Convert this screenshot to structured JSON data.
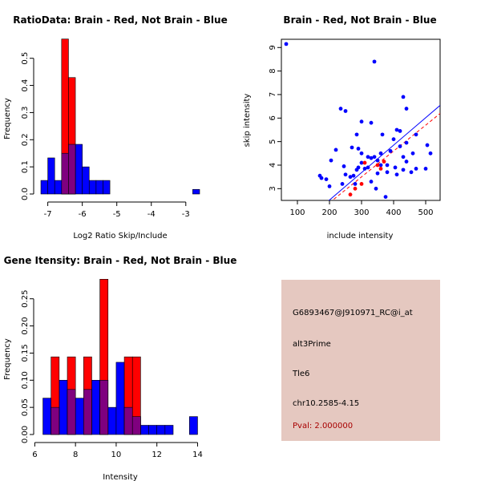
{
  "colors": {
    "brain": "#ff0000",
    "not_brain": "#0000ff",
    "overlap": "#7f007f",
    "panel_bg": "#e5c8c0"
  },
  "chart_data": [
    {
      "type": "histogram",
      "title": "RatioData: Brain - Red, Not Brain - Blue",
      "xlabel": "Log2 Ratio Skip/Include",
      "ylabel": "Frequency",
      "xlim": [
        -7.2,
        -2.6
      ],
      "ylim": [
        0,
        0.57
      ],
      "x_ticks": [
        -7,
        -6,
        -5,
        -4,
        -3
      ],
      "x_tick_labels": [
        "-7",
        "-6",
        "-5",
        "-4",
        "-3"
      ],
      "y_ticks": [
        0.0,
        0.1,
        0.2,
        0.3,
        0.4,
        0.5
      ],
      "y_tick_labels": [
        "0.0",
        "0.1",
        "0.2",
        "0.3",
        "0.4",
        "0.5"
      ],
      "bin_width": 0.2,
      "series": [
        {
          "name": "Not Brain",
          "color": "blue",
          "bins": [
            [
              -7.2,
              0.05
            ],
            [
              -7.0,
              0.133
            ],
            [
              -6.8,
              0.05
            ],
            [
              -6.6,
              0.15
            ],
            [
              -6.4,
              0.183
            ],
            [
              -6.2,
              0.183
            ],
            [
              -6.0,
              0.1
            ],
            [
              -5.8,
              0.05
            ],
            [
              -5.6,
              0.05
            ],
            [
              -5.4,
              0.05
            ],
            [
              -2.8,
              0.017
            ]
          ]
        },
        {
          "name": "Brain",
          "color": "red",
          "bins": [
            [
              -6.6,
              0.571
            ],
            [
              -6.4,
              0.429
            ]
          ]
        }
      ]
    },
    {
      "type": "scatter",
      "title": "Brain - Red, Not Brain - Blue",
      "xlabel": "include intensity",
      "ylabel": "skip intensity",
      "xlim": [
        50,
        545
      ],
      "ylim": [
        2.5,
        9.35
      ],
      "x_ticks": [
        100,
        200,
        300,
        400,
        500
      ],
      "x_tick_labels": [
        "100",
        "200",
        "300",
        "400",
        "500"
      ],
      "y_ticks": [
        3,
        4,
        5,
        6,
        7,
        8,
        9
      ],
      "y_tick_labels": [
        "3",
        "4",
        "5",
        "6",
        "7",
        "8",
        "9"
      ],
      "series": [
        {
          "name": "Not Brain",
          "color": "blue",
          "points": [
            [
              65,
              9.15
            ],
            [
              340,
              8.4
            ],
            [
              430,
              6.9
            ],
            [
              440,
              6.4
            ],
            [
              235,
              6.4
            ],
            [
              250,
              6.3
            ],
            [
              300,
              5.85
            ],
            [
              330,
              5.8
            ],
            [
              365,
              5.3
            ],
            [
              410,
              5.5
            ],
            [
              420,
              5.45
            ],
            [
              470,
              5.3
            ],
            [
              400,
              5.1
            ],
            [
              440,
              4.95
            ],
            [
              285,
              5.3
            ],
            [
              290,
              4.7
            ],
            [
              300,
              4.5
            ],
            [
              320,
              4.35
            ],
            [
              330,
              4.3
            ],
            [
              340,
              4.35
            ],
            [
              350,
              4.2
            ],
            [
              360,
              4.5
            ],
            [
              380,
              4.0
            ],
            [
              390,
              4.6
            ],
            [
              420,
              4.8
            ],
            [
              430,
              4.35
            ],
            [
              440,
              4.15
            ],
            [
              460,
              4.5
            ],
            [
              470,
              3.85
            ],
            [
              505,
              4.85
            ],
            [
              515,
              4.5
            ],
            [
              500,
              3.85
            ],
            [
              170,
              3.55
            ],
            [
              175,
              3.45
            ],
            [
              190,
              3.4
            ],
            [
              200,
              3.1
            ],
            [
              205,
              4.2
            ],
            [
              220,
              4.65
            ],
            [
              245,
              3.95
            ],
            [
              250,
              3.6
            ],
            [
              265,
              3.5
            ],
            [
              275,
              3.55
            ],
            [
              280,
              3.2
            ],
            [
              285,
              3.8
            ],
            [
              310,
              3.85
            ],
            [
              320,
              3.9
            ],
            [
              330,
              3.3
            ],
            [
              345,
              3.0
            ],
            [
              360,
              4.0
            ],
            [
              375,
              2.65
            ],
            [
              410,
              3.6
            ],
            [
              430,
              3.8
            ],
            [
              240,
              3.2
            ],
            [
              290,
              3.9
            ],
            [
              350,
              3.65
            ],
            [
              380,
              3.7
            ],
            [
              405,
              3.9
            ],
            [
              455,
              3.7
            ],
            [
              300,
              4.1
            ],
            [
              270,
              4.75
            ]
          ]
        },
        {
          "name": "Brain",
          "color": "red",
          "points": [
            [
              265,
              2.75
            ],
            [
              280,
              3.0
            ],
            [
              300,
              3.2
            ],
            [
              310,
              4.1
            ],
            [
              350,
              4.0
            ],
            [
              360,
              3.85
            ],
            [
              370,
              4.15
            ]
          ]
        }
      ],
      "fit_lines": [
        {
          "name": "Not Brain fit",
          "color": "blue",
          "style": "solid",
          "from": [
            190,
            2.4
          ],
          "to": [
            550,
            6.6
          ]
        },
        {
          "name": "Brain fit",
          "color": "red",
          "style": "dashed",
          "from": [
            200,
            2.4
          ],
          "to": [
            550,
            6.25
          ]
        }
      ]
    },
    {
      "type": "histogram",
      "title": "Gene Itensity: Brain - Red, Not Brain - Blue",
      "xlabel": "Intensity",
      "ylabel": "Frequency",
      "xlim": [
        6.3,
        14.1
      ],
      "ylim": [
        0,
        0.285
      ],
      "x_ticks": [
        6,
        8,
        10,
        12,
        14
      ],
      "x_tick_labels": [
        "6",
        "8",
        "10",
        "12",
        "14"
      ],
      "y_ticks": [
        0.0,
        0.05,
        0.1,
        0.15,
        0.2,
        0.25
      ],
      "y_tick_labels": [
        "0.00",
        "0.05",
        "0.10",
        "0.15",
        "0.20",
        "0.25"
      ],
      "bin_width": 0.4,
      "series": [
        {
          "name": "Not Brain",
          "color": "blue",
          "bins": [
            [
              6.4,
              0.067
            ],
            [
              6.8,
              0.05
            ],
            [
              7.2,
              0.1
            ],
            [
              7.6,
              0.083
            ],
            [
              8.0,
              0.067
            ],
            [
              8.4,
              0.083
            ],
            [
              8.8,
              0.1
            ],
            [
              9.2,
              0.1
            ],
            [
              9.6,
              0.05
            ],
            [
              10.0,
              0.133
            ],
            [
              10.4,
              0.05
            ],
            [
              10.8,
              0.033
            ],
            [
              11.2,
              0.017
            ],
            [
              11.6,
              0.017
            ],
            [
              12.0,
              0.017
            ],
            [
              12.4,
              0.017
            ],
            [
              13.6,
              0.033
            ]
          ]
        },
        {
          "name": "Brain",
          "color": "red",
          "bins": [
            [
              6.8,
              0.143
            ],
            [
              7.6,
              0.143
            ],
            [
              8.4,
              0.143
            ],
            [
              9.2,
              0.286
            ],
            [
              10.4,
              0.143
            ],
            [
              10.8,
              0.143
            ]
          ]
        }
      ]
    }
  ],
  "info": {
    "probe_id": "G6893467@J910971_RC@i_at",
    "event_type": "alt3Prime",
    "gene": "Tle6",
    "location": "chr10.2585-4.15",
    "pval": "Pval: 2.000000"
  }
}
